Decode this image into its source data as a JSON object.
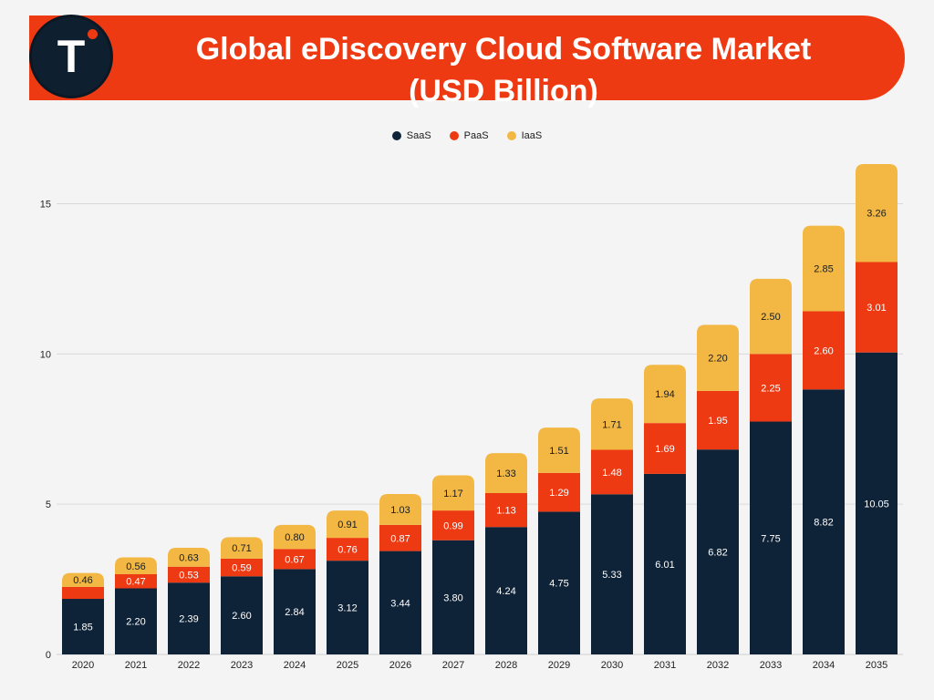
{
  "header": {
    "title_line1": "Global eDiscovery Cloud Software Market",
    "title_line2": "(USD Billion)",
    "logo_letter": "T",
    "banner_color": "#ee3a12",
    "logo_color": "#0e2030"
  },
  "chart_data": {
    "type": "bar",
    "stacked": true,
    "title": "Global eDiscovery Cloud Software Market (USD Billion)",
    "categories": [
      "2020",
      "2021",
      "2022",
      "2023",
      "2024",
      "2025",
      "2026",
      "2027",
      "2028",
      "2029",
      "2030",
      "2031",
      "2032",
      "2033",
      "2034",
      "2035"
    ],
    "series": [
      {
        "name": "SaaS",
        "color": "#0e2238",
        "label_color": "#ffffff",
        "values": [
          1.85,
          2.2,
          2.39,
          2.6,
          2.84,
          3.12,
          3.44,
          3.8,
          4.24,
          4.75,
          5.33,
          6.01,
          6.82,
          7.75,
          8.82,
          10.05
        ]
      },
      {
        "name": "PaaS",
        "color": "#ee3a12",
        "label_color": "#ffffff",
        "values": [
          0.4,
          0.47,
          0.53,
          0.59,
          0.67,
          0.76,
          0.87,
          0.99,
          1.13,
          1.29,
          1.48,
          1.69,
          1.95,
          2.25,
          2.6,
          3.01
        ],
        "labels": [
          "",
          "0.47",
          "0.53",
          "0.59",
          "0.67",
          "0.76",
          "0.87",
          "0.99",
          "1.13",
          "1.29",
          "1.48",
          "1.69",
          "1.95",
          "2.25",
          "2.60",
          "3.01"
        ]
      },
      {
        "name": "IaaS",
        "color": "#f2b843",
        "label_color": "#1b1b1b",
        "values": [
          0.46,
          0.56,
          0.63,
          0.71,
          0.8,
          0.91,
          1.03,
          1.17,
          1.33,
          1.51,
          1.71,
          1.94,
          2.2,
          2.5,
          2.85,
          3.26
        ]
      }
    ],
    "y_ticks": [
      0,
      5,
      10,
      15
    ],
    "ylim": [
      0,
      16.32
    ],
    "grid": true,
    "legend_position": "top-center",
    "xlabel": "",
    "ylabel": ""
  }
}
